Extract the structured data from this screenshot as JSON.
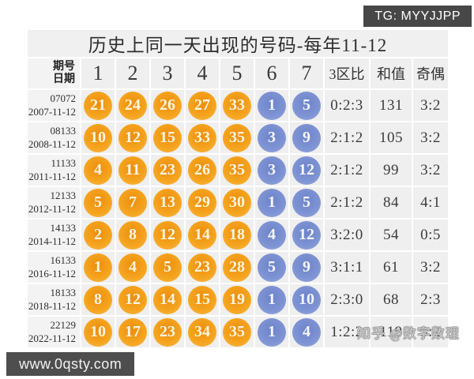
{
  "badges": {
    "top_right": "TG: MYYJJPP",
    "bottom_left": "www.0qsty.com",
    "overlay_watermark": "知乎 @数字数理"
  },
  "colors": {
    "front_ball_orange": "#f5a41e",
    "back_ball_blue": "#7e93d3",
    "cell_bg": "#f0efef",
    "badge_bg": "#474747"
  },
  "chart_data": {
    "type": "table",
    "title": "历史上同一天出现的号码-每年11-12",
    "header": {
      "issue_line1": "期号",
      "issue_line2": "日期",
      "numbers": [
        "1",
        "2",
        "3",
        "4",
        "5",
        "6",
        "7"
      ],
      "zone": "3区比",
      "sum": "和值",
      "parity": "奇偶"
    },
    "columns": [
      "期号/日期",
      "1",
      "2",
      "3",
      "4",
      "5",
      "6",
      "7",
      "3区比",
      "和值",
      "奇偶"
    ],
    "rows": [
      {
        "issue": "07072",
        "date": "2007-11-12",
        "front": [
          21,
          24,
          26,
          27,
          33
        ],
        "back": [
          1,
          5
        ],
        "zone": "0:2:3",
        "sum": "131",
        "parity": "3:2"
      },
      {
        "issue": "08133",
        "date": "2008-11-12",
        "front": [
          10,
          12,
          15,
          33,
          35
        ],
        "back": [
          3,
          9
        ],
        "zone": "2:1:2",
        "sum": "105",
        "parity": "3:2"
      },
      {
        "issue": "11133",
        "date": "2011-11-12",
        "front": [
          4,
          11,
          23,
          26,
          35
        ],
        "back": [
          3,
          12
        ],
        "zone": "2:1:2",
        "sum": "99",
        "parity": "3:2"
      },
      {
        "issue": "12133",
        "date": "2012-11-12",
        "front": [
          5,
          7,
          13,
          29,
          30
        ],
        "back": [
          1,
          5
        ],
        "zone": "2:1:2",
        "sum": "84",
        "parity": "4:1"
      },
      {
        "issue": "14133",
        "date": "2014-11-12",
        "front": [
          2,
          8,
          12,
          14,
          18
        ],
        "back": [
          4,
          12
        ],
        "zone": "3:2:0",
        "sum": "54",
        "parity": "0:5"
      },
      {
        "issue": "16133",
        "date": "2016-11-12",
        "front": [
          1,
          4,
          5,
          23,
          28
        ],
        "back": [
          5,
          9
        ],
        "zone": "3:1:1",
        "sum": "61",
        "parity": "3:2"
      },
      {
        "issue": "18133",
        "date": "2018-11-12",
        "front": [
          8,
          12,
          14,
          15,
          19
        ],
        "back": [
          1,
          10
        ],
        "zone": "2:3:0",
        "sum": "68",
        "parity": "2:3"
      },
      {
        "issue": "22129",
        "date": "2022-11-12",
        "front": [
          10,
          17,
          23,
          34,
          35
        ],
        "back": [
          1,
          4
        ],
        "zone": "1:2:2",
        "sum": "119",
        "parity": "3:2"
      }
    ]
  }
}
